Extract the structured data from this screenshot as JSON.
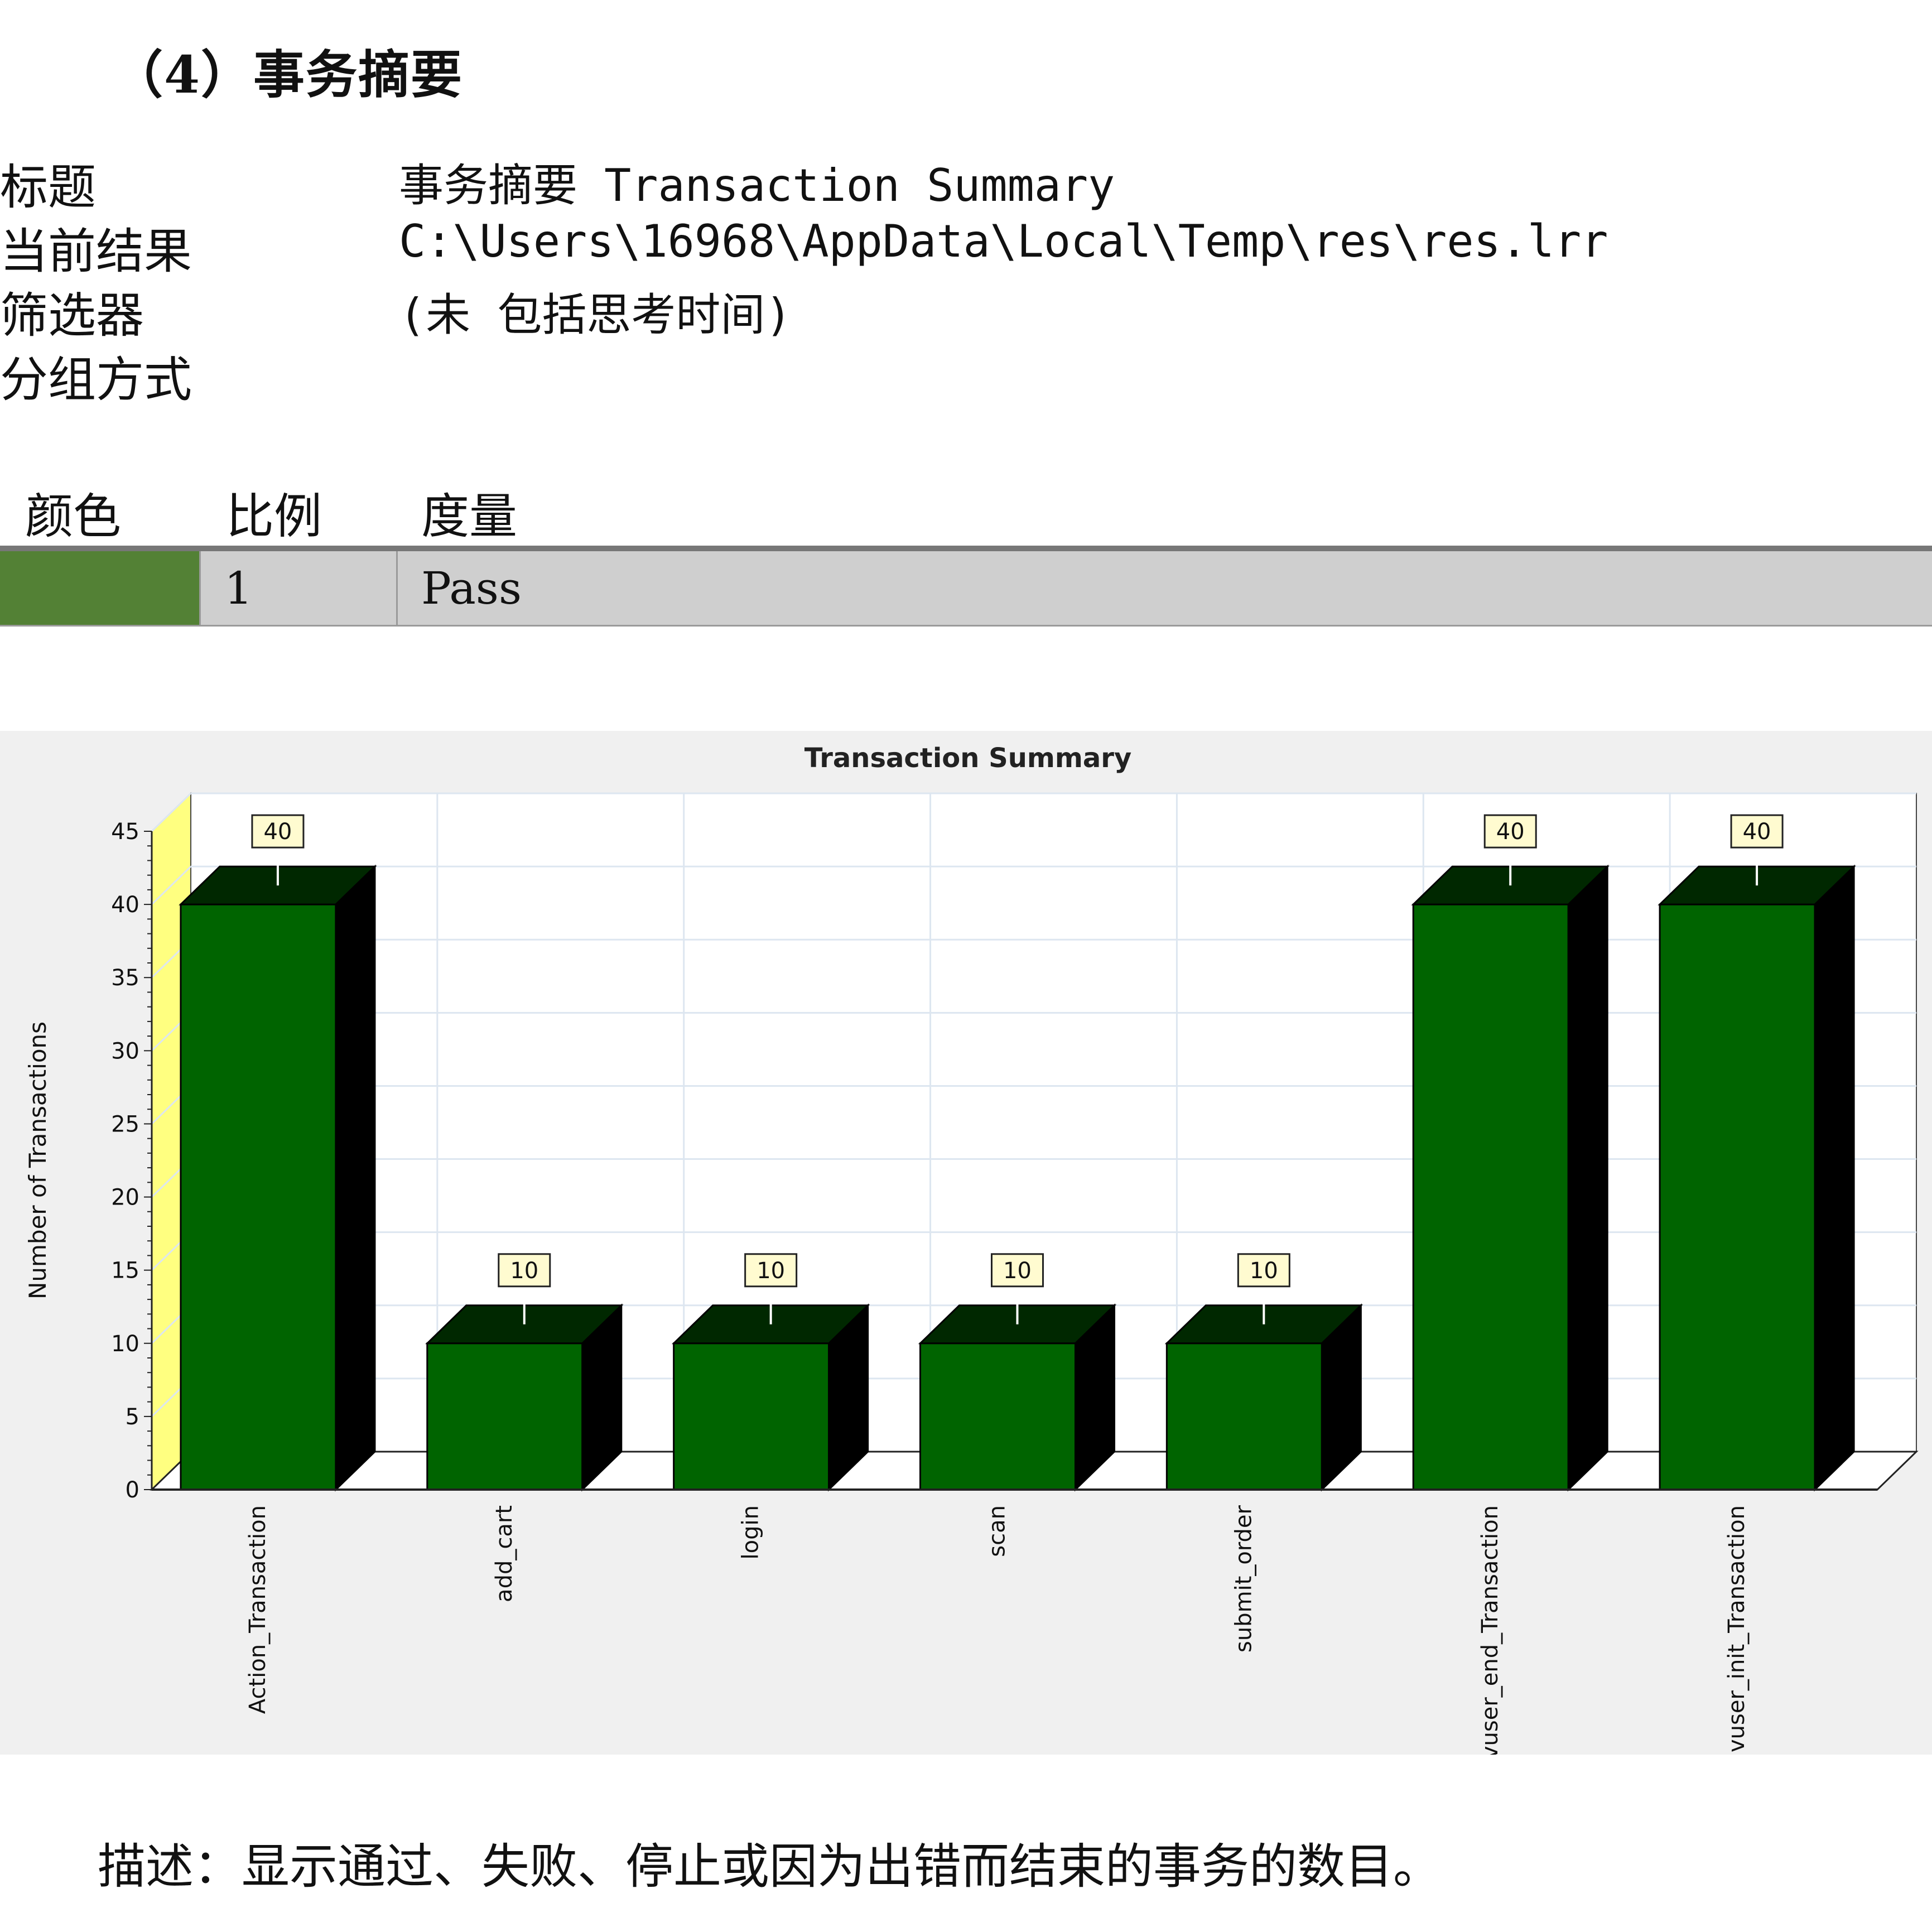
{
  "heading": "（4）事务摘要",
  "meta": {
    "title_label": "标题",
    "title_value": "事务摘要 Transaction Summary",
    "result_label": "当前结果",
    "result_value": "C:\\Users\\16968\\AppData\\Local\\Temp\\res\\res.lrr",
    "filter_label": "筛选器",
    "filter_value": "(未 包括思考时间)",
    "group_label": "分组方式"
  },
  "legend": {
    "col_color": "颜色",
    "col_scale": "比例",
    "col_measure": "度量",
    "row": {
      "color": "#538135",
      "scale": "1",
      "measure": "Pass"
    }
  },
  "colors": {
    "bar_front": "#006400",
    "bar_top": "#002800",
    "bar_side": "#000000",
    "back_wall": "#ffff80",
    "grid": "#dde6f0",
    "panel_bg": "#f0f0f0"
  },
  "chart_data": {
    "type": "bar",
    "title": "Transaction Summary",
    "ylabel": "Number of Transactions",
    "xlabel": "",
    "categories": [
      "Action_Transaction",
      "add_cart",
      "login",
      "scan",
      "submit_order",
      "vuser_end_Transaction",
      "vuser_init_Transaction"
    ],
    "values": [
      40,
      10,
      10,
      10,
      10,
      40,
      40
    ],
    "ylim": [
      0,
      45
    ],
    "yticks": [
      0,
      5,
      10,
      15,
      20,
      25,
      30,
      35,
      40,
      45
    ],
    "data_labels": [
      "40",
      "10",
      "10",
      "10",
      "10",
      "40",
      "40"
    ],
    "grid": true,
    "style": "3d"
  },
  "description": "描述：显示通过、失败、停止或因为出错而结束的事务的数目。"
}
